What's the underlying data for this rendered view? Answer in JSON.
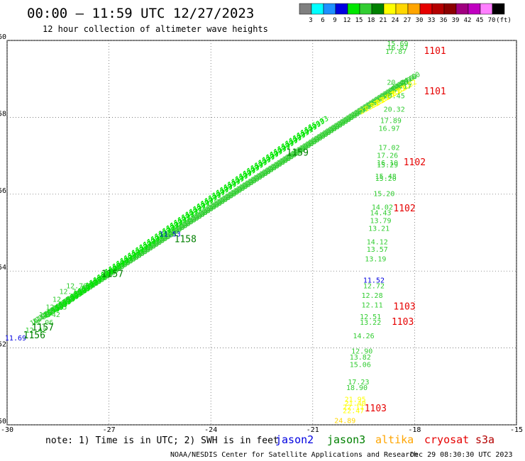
{
  "header": {
    "title": "00:00 – 11:59 UTC 12/27/2023",
    "subtitle": "12 hour collection of altimeter wave heights"
  },
  "colorbar": {
    "colors": [
      "#7f7f7f",
      "#00ffff",
      "#1e90ff",
      "#0000e0",
      "#00e600",
      "#32cd32",
      "#008000",
      "#ffff00",
      "#ffd700",
      "#ffa500",
      "#e60000",
      "#b40000",
      "#8b0000",
      "#a00080",
      "#c000c0",
      "#ff80ff",
      "#000000"
    ],
    "labels": [
      "3",
      "6",
      "9",
      "12",
      "15",
      "18",
      "21",
      "24",
      "27",
      "30",
      "33",
      "36",
      "39",
      "42",
      "45",
      "70",
      "(ft)"
    ]
  },
  "legend": {
    "note": "note: 1) Time is in UTC; 2) SWH is in feet",
    "items": [
      {
        "name": "jason2",
        "color": "#0000e0"
      },
      {
        "name": "jason3",
        "color": "#008000"
      },
      {
        "name": "altika",
        "color": "#ffa500"
      },
      {
        "name": "cryosat",
        "color": "#e60000"
      },
      {
        "name": "s3a",
        "color": "#b40000"
      }
    ],
    "credit": "NOAA/NESDIS Center for Satellite Applications and Research",
    "timestamp": "Dec 29 08:30:30 UTC 2023"
  },
  "chart_data": {
    "type": "scatter",
    "title": "00:00 – 11:59 UTC 12/27/2023",
    "xlim": [
      -30,
      -15
    ],
    "ylim": [
      50,
      60
    ],
    "xticks": [
      -30,
      -27,
      -24,
      -21,
      -18,
      -15
    ],
    "yticks": [
      50,
      52,
      54,
      56,
      58,
      60
    ],
    "grid": true,
    "labels": [
      {
        "x": -29.75,
        "y": 52.2,
        "text": "11.69",
        "color": "#0000e0"
      },
      {
        "x": -29.15,
        "y": 52.4,
        "text": "12.42",
        "color": "#32cd32"
      },
      {
        "x": -28.95,
        "y": 52.6,
        "text": "12.06",
        "color": "#32cd32"
      },
      {
        "x": -28.75,
        "y": 52.8,
        "text": "12.42",
        "color": "#32cd32"
      },
      {
        "x": -28.55,
        "y": 53.0,
        "text": "12.25",
        "color": "#32cd32"
      },
      {
        "x": -28.35,
        "y": 53.2,
        "text": "12.81",
        "color": "#32cd32"
      },
      {
        "x": -28.15,
        "y": 53.4,
        "text": "12.74",
        "color": "#32cd32"
      },
      {
        "x": -27.95,
        "y": 53.55,
        "text": "12.78",
        "color": "#32cd32"
      },
      {
        "x": -29.2,
        "y": 52.25,
        "text": "1156",
        "color": "#008000"
      },
      {
        "x": -28.95,
        "y": 52.45,
        "text": "1157",
        "color": "#008000"
      },
      {
        "x": -26.9,
        "y": 53.85,
        "text": "1157",
        "color": "#008000"
      },
      {
        "x": -25.2,
        "y": 54.9,
        "text": "11.53",
        "color": "#0000e0"
      },
      {
        "x": -24.75,
        "y": 54.75,
        "text": "1158",
        "color": "#008000"
      },
      {
        "x": -21.45,
        "y": 57.0,
        "text": "1159",
        "color": "#008000"
      },
      {
        "x": -18.5,
        "y": 59.85,
        "text": "15.69",
        "color": "#32cd32"
      },
      {
        "x": -18.5,
        "y": 59.75,
        "text": "16.87",
        "color": "#32cd32"
      },
      {
        "x": -18.55,
        "y": 59.65,
        "text": "17.87",
        "color": "#32cd32"
      },
      {
        "x": -17.4,
        "y": 59.65,
        "text": "1101",
        "color": "#e60000"
      },
      {
        "x": -18.5,
        "y": 58.85,
        "text": "20.45",
        "color": "#32cd32"
      },
      {
        "x": -18.4,
        "y": 58.75,
        "text": "22.17",
        "color": "#32cd32"
      },
      {
        "x": -18.6,
        "y": 58.5,
        "text": "20.45",
        "color": "#32cd32"
      },
      {
        "x": -17.4,
        "y": 58.6,
        "text": "1101",
        "color": "#e60000"
      },
      {
        "x": -18.6,
        "y": 58.15,
        "text": "20.32",
        "color": "#32cd32"
      },
      {
        "x": -18.7,
        "y": 57.85,
        "text": "17.89",
        "color": "#32cd32"
      },
      {
        "x": -18.75,
        "y": 57.65,
        "text": "16.97",
        "color": "#32cd32"
      },
      {
        "x": -18.75,
        "y": 57.15,
        "text": "17.02",
        "color": "#32cd32"
      },
      {
        "x": -18.8,
        "y": 56.95,
        "text": "17.26",
        "color": "#32cd32"
      },
      {
        "x": -18.8,
        "y": 56.75,
        "text": "16.10",
        "color": "#32cd32"
      },
      {
        "x": -18.8,
        "y": 56.7,
        "text": "15.29",
        "color": "#32cd32"
      },
      {
        "x": -18.0,
        "y": 56.75,
        "text": "1102",
        "color": "#e60000"
      },
      {
        "x": -18.85,
        "y": 56.4,
        "text": "15.48",
        "color": "#32cd32"
      },
      {
        "x": -18.85,
        "y": 56.35,
        "text": "15.20",
        "color": "#32cd32"
      },
      {
        "x": -18.9,
        "y": 55.95,
        "text": "15.20",
        "color": "#32cd32"
      },
      {
        "x": -18.95,
        "y": 55.6,
        "text": "14.02",
        "color": "#32cd32"
      },
      {
        "x": -19.0,
        "y": 55.45,
        "text": "14.43",
        "color": "#32cd32"
      },
      {
        "x": -18.3,
        "y": 55.55,
        "text": "1102",
        "color": "#e60000"
      },
      {
        "x": -19.0,
        "y": 55.25,
        "text": "13.79",
        "color": "#32cd32"
      },
      {
        "x": -19.05,
        "y": 55.05,
        "text": "13.21",
        "color": "#32cd32"
      },
      {
        "x": -19.1,
        "y": 54.7,
        "text": "14.12",
        "color": "#32cd32"
      },
      {
        "x": -19.1,
        "y": 54.5,
        "text": "13.57",
        "color": "#32cd32"
      },
      {
        "x": -19.15,
        "y": 54.25,
        "text": "13.19",
        "color": "#32cd32"
      },
      {
        "x": -19.2,
        "y": 53.7,
        "text": "11.52",
        "color": "#0000e0"
      },
      {
        "x": -19.2,
        "y": 53.55,
        "text": "12.72",
        "color": "#32cd32"
      },
      {
        "x": -19.25,
        "y": 53.3,
        "text": "12.28",
        "color": "#32cd32"
      },
      {
        "x": -19.25,
        "y": 53.05,
        "text": "12.11",
        "color": "#32cd32"
      },
      {
        "x": -18.3,
        "y": 53.0,
        "text": "1103",
        "color": "#e60000"
      },
      {
        "x": -19.3,
        "y": 52.75,
        "text": "12.51",
        "color": "#32cd32"
      },
      {
        "x": -19.3,
        "y": 52.6,
        "text": "13.22",
        "color": "#32cd32"
      },
      {
        "x": -18.35,
        "y": 52.6,
        "text": "1103",
        "color": "#e60000"
      },
      {
        "x": -19.5,
        "y": 52.25,
        "text": "14.26",
        "color": "#32cd32"
      },
      {
        "x": -19.55,
        "y": 51.85,
        "text": "12.90",
        "color": "#32cd32"
      },
      {
        "x": -19.6,
        "y": 51.7,
        "text": "13.82",
        "color": "#32cd32"
      },
      {
        "x": -19.6,
        "y": 51.5,
        "text": "15.06",
        "color": "#32cd32"
      },
      {
        "x": -19.65,
        "y": 51.05,
        "text": "17.23",
        "color": "#32cd32"
      },
      {
        "x": -19.7,
        "y": 50.9,
        "text": "18.90",
        "color": "#32cd32"
      },
      {
        "x": -19.75,
        "y": 50.6,
        "text": "21.95",
        "color": "#ffff00"
      },
      {
        "x": -19.75,
        "y": 50.5,
        "text": "21.40",
        "color": "#ffff00"
      },
      {
        "x": -19.8,
        "y": 50.4,
        "text": "22.11",
        "color": "#ffff00"
      },
      {
        "x": -19.8,
        "y": 50.3,
        "text": "22.47",
        "color": "#ffff00"
      },
      {
        "x": -19.15,
        "y": 50.35,
        "text": "1103",
        "color": "#e60000"
      },
      {
        "x": -20.05,
        "y": 50.05,
        "text": "24.89",
        "color": "#ffd700"
      }
    ],
    "tracks": [
      {
        "from": [
          -29.0,
          52.7
        ],
        "to": [
          -18.1,
          58.95
        ],
        "count": 130,
        "text": "14.60",
        "color": "#32cd32"
      },
      {
        "from": [
          -28.6,
          52.9
        ],
        "to": [
          -20.8,
          57.8
        ],
        "count": 70,
        "text": "15.03",
        "color": "#00e600"
      },
      {
        "from": [
          -19.3,
          58.2
        ],
        "to": [
          -18.2,
          58.75
        ],
        "count": 8,
        "text": "23.02",
        "color": "#ffff00"
      }
    ]
  }
}
